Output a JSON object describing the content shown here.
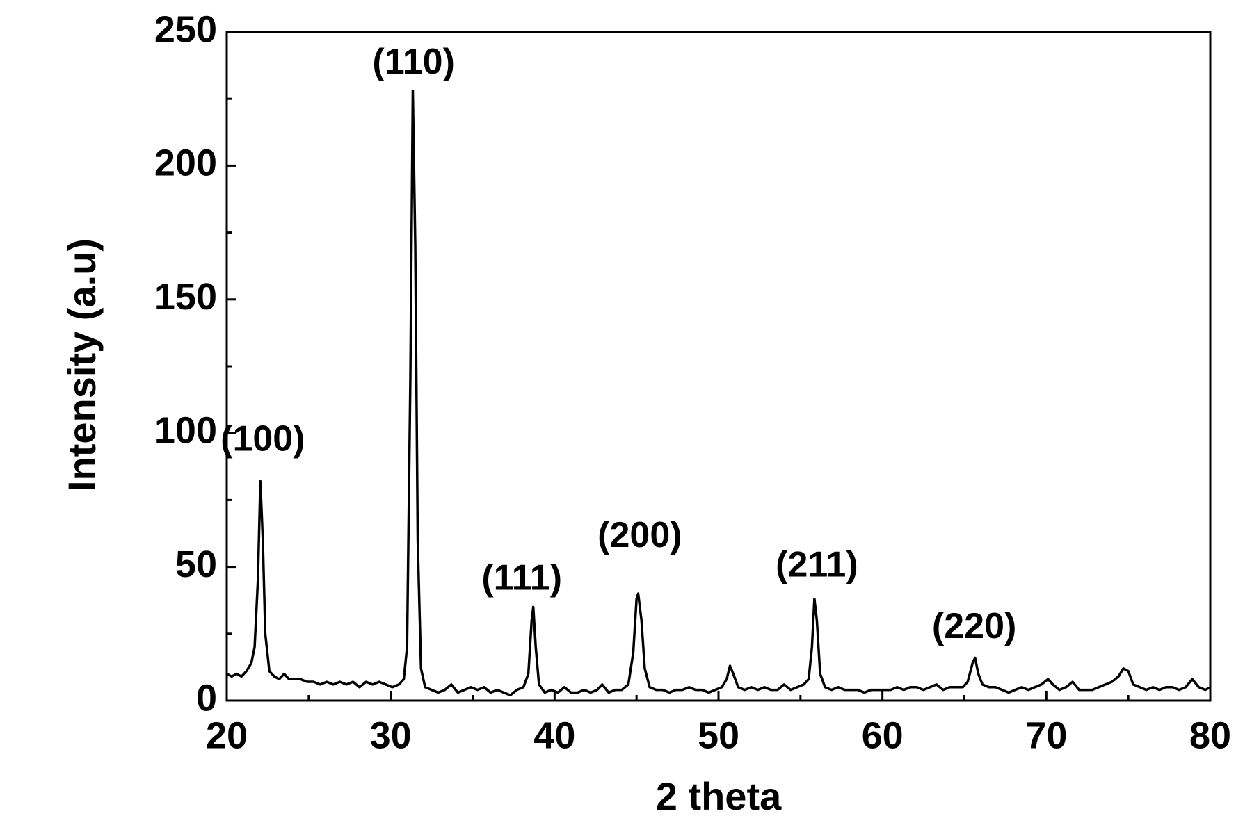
{
  "chart_data": {
    "type": "line",
    "xlabel": "2 theta",
    "ylabel": "Intensity (a.u)",
    "xlim": [
      20,
      80
    ],
    "xticks": [
      20,
      30,
      40,
      50,
      60,
      70,
      80
    ],
    "xminorticks": [
      25,
      35,
      45,
      55,
      65,
      75
    ],
    "ylim": [
      0,
      250
    ],
    "yticks": [
      0,
      50,
      100,
      150,
      200,
      250
    ],
    "yminorticks": [
      25,
      75,
      125,
      175,
      225
    ],
    "grid": false,
    "x": [
      20,
      20.3,
      20.6,
      20.9,
      21.2,
      21.5,
      21.7,
      21.9,
      22.05,
      22.2,
      22.35,
      22.6,
      22.9,
      23.2,
      23.5,
      23.8,
      24.1,
      24.5,
      24.9,
      25.3,
      25.7,
      26.1,
      26.5,
      26.9,
      27.3,
      27.7,
      28.1,
      28.5,
      28.9,
      29.3,
      29.7,
      30.1,
      30.5,
      30.8,
      31.0,
      31.2,
      31.35,
      31.5,
      31.65,
      31.85,
      32.1,
      32.5,
      32.9,
      33.3,
      33.7,
      34.1,
      34.5,
      34.9,
      35.3,
      35.7,
      36.1,
      36.5,
      36.9,
      37.3,
      37.7,
      38.1,
      38.4,
      38.6,
      38.7,
      38.85,
      39.05,
      39.4,
      39.8,
      40.2,
      40.6,
      41.0,
      41.4,
      41.8,
      42.2,
      42.6,
      42.9,
      43.3,
      43.7,
      44.1,
      44.5,
      44.8,
      45.0,
      45.1,
      45.3,
      45.5,
      45.8,
      46.2,
      46.6,
      47.0,
      47.4,
      47.8,
      48.2,
      48.6,
      49.0,
      49.4,
      49.8,
      50.2,
      50.5,
      50.7,
      50.9,
      51.2,
      51.6,
      52.0,
      52.4,
      52.8,
      53.2,
      53.6,
      54.0,
      54.4,
      54.8,
      55.2,
      55.5,
      55.7,
      55.85,
      56.0,
      56.2,
      56.5,
      56.9,
      57.3,
      57.7,
      58.1,
      58.5,
      58.9,
      59.3,
      59.7,
      60.1,
      60.5,
      60.9,
      61.3,
      61.7,
      62.1,
      62.5,
      62.9,
      63.3,
      63.7,
      64.1,
      64.5,
      64.9,
      65.2,
      65.5,
      65.65,
      65.85,
      66.1,
      66.5,
      66.9,
      67.3,
      67.7,
      68.1,
      68.5,
      68.9,
      69.3,
      69.7,
      70.1,
      70.4,
      70.8,
      71.2,
      71.6,
      72.0,
      72.4,
      72.8,
      73.2,
      73.6,
      74.0,
      74.4,
      74.7,
      75.0,
      75.3,
      75.7,
      76.1,
      76.5,
      76.9,
      77.3,
      77.7,
      78.1,
      78.5,
      78.9,
      79.3,
      79.7,
      80.0
    ],
    "series": [
      {
        "color": "#000000",
        "values": [
          10,
          9,
          10,
          9,
          11,
          14,
          20,
          45,
          82,
          60,
          25,
          11,
          9,
          8,
          10,
          8,
          8,
          8,
          7,
          7,
          6,
          7,
          6,
          7,
          6,
          7,
          5,
          7,
          6,
          7,
          6,
          5,
          6,
          8,
          20,
          120,
          228,
          170,
          60,
          12,
          5,
          4,
          3,
          4,
          6,
          3,
          4,
          5,
          4,
          5,
          3,
          4,
          3,
          2,
          4,
          5,
          10,
          30,
          35,
          20,
          6,
          3,
          4,
          3,
          5,
          3,
          3,
          4,
          3,
          4,
          6,
          3,
          4,
          4,
          6,
          18,
          38,
          40,
          30,
          12,
          5,
          4,
          4,
          3,
          4,
          4,
          5,
          4,
          4,
          3,
          4,
          5,
          8,
          13,
          10,
          5,
          4,
          5,
          4,
          5,
          4,
          4,
          6,
          4,
          5,
          6,
          8,
          20,
          38,
          30,
          10,
          5,
          4,
          5,
          4,
          4,
          4,
          3,
          4,
          4,
          4,
          4,
          5,
          4,
          5,
          5,
          4,
          5,
          6,
          4,
          5,
          5,
          5,
          7,
          14,
          16,
          10,
          6,
          5,
          5,
          4,
          3,
          4,
          5,
          4,
          5,
          6,
          8,
          6,
          4,
          5,
          7,
          4,
          4,
          4,
          5,
          6,
          7,
          9,
          12,
          11,
          6,
          5,
          4,
          5,
          4,
          5,
          5,
          4,
          5,
          8,
          5,
          4,
          5
        ]
      }
    ],
    "annotations": [
      {
        "text": "(100)",
        "x": 22.2,
        "y": 97
      },
      {
        "text": "(110)",
        "x": 31.4,
        "y": 238
      },
      {
        "text": "(111)",
        "x": 38.0,
        "y": 45
      },
      {
        "text": "(200)",
        "x": 45.2,
        "y": 61
      },
      {
        "text": "(211)",
        "x": 56.0,
        "y": 50
      },
      {
        "text": "(220)",
        "x": 65.6,
        "y": 27
      }
    ]
  }
}
